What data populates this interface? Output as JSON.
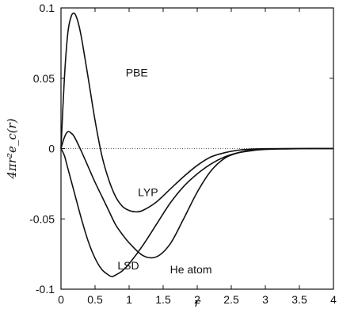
{
  "chart_data": {
    "type": "line",
    "xlabel": "r",
    "ylabel": "4πr²e_c(r)",
    "xlim": [
      0,
      4
    ],
    "ylim": [
      -0.1,
      0.1
    ],
    "xticks": [
      "0",
      "0.5",
      "1",
      "1.5",
      "2",
      "2.5",
      "3",
      "3.5",
      "4"
    ],
    "yticks": [
      "0.1",
      "0.05",
      "0",
      "-0.05",
      "-0.1"
    ],
    "grid": false,
    "reference_line": {
      "y": 0,
      "style": "dotted"
    },
    "annotations": [
      {
        "text": "PBE",
        "x": 0.95,
        "y": 0.054
      },
      {
        "text": "LYP",
        "x": 1.13,
        "y": -0.031
      },
      {
        "text": "LSD",
        "x": 0.83,
        "y": -0.083
      },
      {
        "text": "He atom",
        "x": 1.6,
        "y": -0.086
      }
    ],
    "series": [
      {
        "label": "PBE",
        "x": [
          0,
          0.05,
          0.1,
          0.15,
          0.2,
          0.25,
          0.3,
          0.4,
          0.5,
          0.6,
          0.7,
          0.8,
          0.9,
          1.0,
          1.1,
          1.2,
          1.4,
          1.6,
          1.8,
          2.0,
          2.2,
          2.4,
          2.6,
          2.8,
          3.0,
          3.5,
          4.0
        ],
        "y": [
          0,
          0.05,
          0.082,
          0.094,
          0.096,
          0.09,
          0.079,
          0.05,
          0.02,
          -0.005,
          -0.022,
          -0.034,
          -0.041,
          -0.044,
          -0.045,
          -0.044,
          -0.038,
          -0.029,
          -0.02,
          -0.012,
          -0.006,
          -0.003,
          -0.0012,
          -0.0004,
          -0.0001,
          0,
          0
        ]
      },
      {
        "label": "LYP",
        "x": [
          0,
          0.05,
          0.1,
          0.15,
          0.2,
          0.3,
          0.4,
          0.5,
          0.6,
          0.7,
          0.8,
          0.9,
          1.0,
          1.2,
          1.4,
          1.6,
          1.8,
          2.0,
          2.2,
          2.4,
          2.6,
          2.8,
          3.0,
          3.5,
          4.0
        ],
        "y": [
          0,
          0.008,
          0.012,
          0.011,
          0.008,
          -0.002,
          -0.013,
          -0.024,
          -0.034,
          -0.044,
          -0.054,
          -0.061,
          -0.067,
          -0.076,
          -0.077,
          -0.068,
          -0.05,
          -0.031,
          -0.016,
          -0.007,
          -0.003,
          -0.001,
          -0.0003,
          0,
          0
        ]
      },
      {
        "label": "LSD",
        "x": [
          0,
          0.05,
          0.1,
          0.2,
          0.3,
          0.4,
          0.5,
          0.6,
          0.7,
          0.75,
          0.8,
          0.9,
          1.0,
          1.2,
          1.4,
          1.6,
          1.8,
          2.0,
          2.2,
          2.4,
          2.6,
          2.8,
          3.0,
          3.5,
          4.0
        ],
        "y": [
          0,
          -0.005,
          -0.014,
          -0.032,
          -0.05,
          -0.066,
          -0.078,
          -0.086,
          -0.09,
          -0.091,
          -0.09,
          -0.087,
          -0.082,
          -0.069,
          -0.054,
          -0.039,
          -0.027,
          -0.018,
          -0.011,
          -0.006,
          -0.003,
          -0.0015,
          -0.0006,
          -0.0001,
          0
        ]
      }
    ]
  }
}
